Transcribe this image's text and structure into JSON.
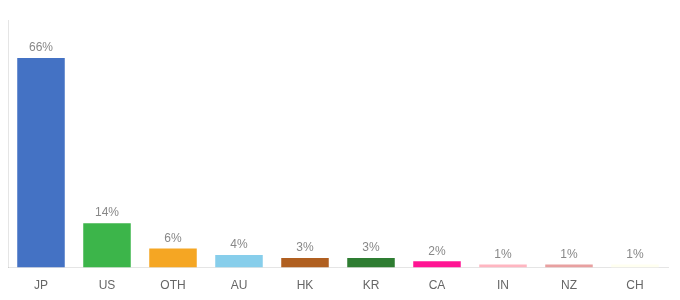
{
  "chart_data": {
    "type": "bar",
    "categories": [
      "JP",
      "US",
      "OTH",
      "AU",
      "HK",
      "KR",
      "CA",
      "IN",
      "NZ",
      "CH"
    ],
    "values": [
      66,
      14,
      6,
      4,
      3,
      3,
      2,
      1,
      1,
      1
    ],
    "value_labels": [
      "66%",
      "14%",
      "6%",
      "4%",
      "3%",
      "3%",
      "2%",
      "1%",
      "1%",
      "1%"
    ],
    "colors": [
      "#4472C4",
      "#3CB54A",
      "#F5A623",
      "#87CEEB",
      "#B05F20",
      "#2E7D32",
      "#FF1493",
      "#FFB6C1",
      "#E8A0A0",
      "#FFFFF0"
    ],
    "ylim": [
      0,
      78
    ],
    "grid": false,
    "data_labels": true,
    "tick_labels": "x"
  }
}
